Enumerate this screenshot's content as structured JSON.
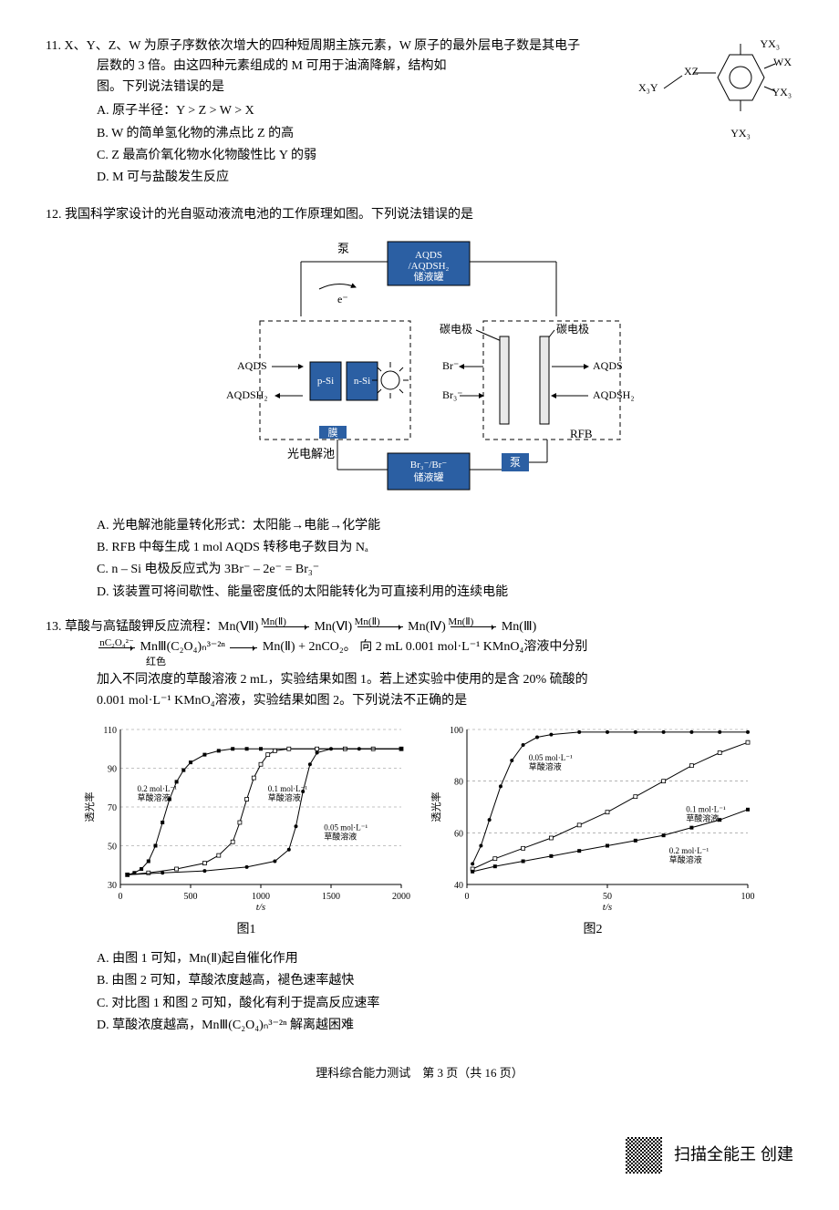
{
  "q11": {
    "num": "11.",
    "stem_l1": "X、Y、Z、W 为原子序数依次增大的四种短周期主族元素，W 原子的最外层电子数是其电子",
    "stem_l2": "层数的 3 倍。由这四种元素组成的 M 可用于油滴降解，结构如",
    "stem_l3": "图。下列说法错误的是",
    "options": {
      "A": "A. 原子半径：Y > Z > W > X",
      "B": "B. W 的简单氢化物的沸点比 Z 的高",
      "C": "C. Z 最高价氧化物水化物酸性比 Y 的弱",
      "D": "D. M 可与盐酸发生反应"
    },
    "fig": {
      "labels": {
        "tl": "YX₃",
        "tr_u": "WX",
        "tr_l": "YX₃",
        "br": "YX₃",
        "left": "X₃Y",
        "mid": "XZ"
      }
    }
  },
  "q12": {
    "num": "12.",
    "stem": "我国科学家设计的光自驱动液流电池的工作原理如图。下列说法错误的是",
    "fig": {
      "top_pump": "泵",
      "aqds_tank": "AQDS/AQDSH₂储液罐",
      "carbon_l": "碳电极",
      "carbon_r": "碳电极",
      "aqds": "AQDS",
      "aqdsh2_l": "AQDSH₂",
      "aqdsh2_r": "AQDSH₂",
      "aqds_r": "AQDS",
      "psi": "p-Si",
      "nsi": "n-Si",
      "br": "Br⁻",
      "br3": "Br₃⁻",
      "membrane": "膜",
      "photocell": "光电解池",
      "brtank": "Br₃⁻/Br⁻储液罐",
      "bottom_pump": "泵",
      "rfb": "RFB",
      "e": "e⁻"
    },
    "options": {
      "A": "A. 光电解池能量转化形式：太阳能→电能→化学能",
      "B": "B. RFB 中每生成 1 mol AQDS 转移电子数目为 Nₐ",
      "C": "C. n – Si 电极反应式为 3Br⁻ – 2e⁻ = Br₃⁻",
      "D": "D. 该装置可将间歇性、能量密度低的太阳能转化为可直接利用的连续电能"
    }
  },
  "q13": {
    "num": "13.",
    "stem_prefix": "草酸与高锰酸钾反应流程：Mn(Ⅶ)",
    "arrow_top": "Mn(Ⅱ)",
    "mn6": "Mn(Ⅵ)",
    "mn4": "Mn(Ⅳ)",
    "mn3": "Mn(Ⅲ)",
    "line2_prefix_top": "nC₂O₄²⁻",
    "line2_complex": "MnⅢ(C₂O₄)ₙ³⁻²ⁿ",
    "line2_redcolor": "红色",
    "line2_prod": "Mn(Ⅱ) + 2nCO₂。",
    "line2_rest": "向 2 mL 0.001 mol·L⁻¹ KMnO₄溶液中分别",
    "line3": "加入不同浓度的草酸溶液 2 mL，实验结果如图 1。若上述实验中使用的是含 20% 硫酸的",
    "line4": "0.001 mol·L⁻¹ KMnO₄溶液，实验结果如图 2。下列说法不正确的是",
    "chart1": {
      "caption": "图1",
      "xlabel": "t/s",
      "ylabel": "透光率",
      "xlim": [
        0,
        2000
      ],
      "ylim": [
        30,
        110
      ],
      "xticks": [
        0,
        500,
        1000,
        1500,
        2000
      ],
      "yticks": [
        30,
        50,
        70,
        90,
        110
      ],
      "grid_color": "#888888",
      "bg": "#ffffff",
      "series": [
        {
          "label": "0.2 mol·L⁻¹\n草酸溶液",
          "label_xy": [
            120,
            78
          ],
          "marker": "square",
          "color": "#000000",
          "points": [
            [
              50,
              35
            ],
            [
              100,
              36
            ],
            [
              150,
              38
            ],
            [
              200,
              42
            ],
            [
              250,
              50
            ],
            [
              300,
              62
            ],
            [
              350,
              74
            ],
            [
              400,
              83
            ],
            [
              450,
              89
            ],
            [
              500,
              93
            ],
            [
              600,
              97
            ],
            [
              700,
              99
            ],
            [
              800,
              100
            ],
            [
              900,
              100
            ],
            [
              1000,
              100
            ],
            [
              1200,
              100
            ],
            [
              1400,
              100
            ],
            [
              1600,
              100
            ],
            [
              1800,
              100
            ],
            [
              2000,
              100
            ]
          ]
        },
        {
          "label": "0.1 mol·L⁻¹\n草酸溶液",
          "label_xy": [
            1050,
            78
          ],
          "marker": "square-open",
          "color": "#000000",
          "points": [
            [
              50,
              35
            ],
            [
              200,
              36
            ],
            [
              400,
              38
            ],
            [
              600,
              41
            ],
            [
              700,
              45
            ],
            [
              800,
              52
            ],
            [
              850,
              62
            ],
            [
              900,
              74
            ],
            [
              950,
              85
            ],
            [
              1000,
              92
            ],
            [
              1050,
              97
            ],
            [
              1100,
              99
            ],
            [
              1200,
              100
            ],
            [
              1400,
              100
            ],
            [
              1600,
              100
            ],
            [
              1800,
              100
            ],
            [
              2000,
              100
            ]
          ]
        },
        {
          "label": "0.05 mol·L⁻¹\n草酸溶液",
          "label_xy": [
            1450,
            58
          ],
          "marker": "circle",
          "color": "#000000",
          "points": [
            [
              50,
              35
            ],
            [
              300,
              36
            ],
            [
              600,
              37
            ],
            [
              900,
              39
            ],
            [
              1100,
              42
            ],
            [
              1200,
              48
            ],
            [
              1250,
              60
            ],
            [
              1300,
              78
            ],
            [
              1350,
              92
            ],
            [
              1400,
              98
            ],
            [
              1500,
              100
            ],
            [
              1700,
              100
            ],
            [
              2000,
              100
            ]
          ]
        }
      ]
    },
    "chart2": {
      "caption": "图2",
      "xlabel": "t/s",
      "ylabel": "透光率",
      "xlim": [
        0,
        100
      ],
      "ylim": [
        40,
        100
      ],
      "xticks": [
        0,
        50,
        100
      ],
      "yticks": [
        40,
        60,
        80,
        100
      ],
      "grid_color": "#888888",
      "bg": "#ffffff",
      "series": [
        {
          "label": "0.05 mol·L⁻¹\n草酸溶液",
          "label_xy": [
            22,
            88
          ],
          "marker": "circle",
          "color": "#000000",
          "points": [
            [
              2,
              48
            ],
            [
              5,
              55
            ],
            [
              8,
              65
            ],
            [
              12,
              78
            ],
            [
              16,
              88
            ],
            [
              20,
              94
            ],
            [
              25,
              97
            ],
            [
              30,
              98
            ],
            [
              40,
              99
            ],
            [
              50,
              99
            ],
            [
              60,
              99
            ],
            [
              70,
              99
            ],
            [
              80,
              99
            ],
            [
              90,
              99
            ],
            [
              100,
              99
            ]
          ]
        },
        {
          "label": "0.1 mol·L⁻¹\n草酸溶液",
          "label_xy": [
            78,
            68
          ],
          "marker": "square-open",
          "color": "#000000",
          "points": [
            [
              2,
              46
            ],
            [
              10,
              50
            ],
            [
              20,
              54
            ],
            [
              30,
              58
            ],
            [
              40,
              63
            ],
            [
              50,
              68
            ],
            [
              60,
              74
            ],
            [
              70,
              80
            ],
            [
              80,
              86
            ],
            [
              90,
              91
            ],
            [
              100,
              95
            ]
          ]
        },
        {
          "label": "0.2 mol·L⁻¹\n草酸溶液",
          "label_xy": [
            72,
            52
          ],
          "marker": "square",
          "color": "#000000",
          "points": [
            [
              2,
              45
            ],
            [
              10,
              47
            ],
            [
              20,
              49
            ],
            [
              30,
              51
            ],
            [
              40,
              53
            ],
            [
              50,
              55
            ],
            [
              60,
              57
            ],
            [
              70,
              59
            ],
            [
              80,
              62
            ],
            [
              90,
              65
            ],
            [
              100,
              69
            ]
          ]
        }
      ]
    },
    "options": {
      "A": "A. 由图 1 可知，Mn(Ⅱ)起自催化作用",
      "B": "B. 由图 2 可知，草酸浓度越高，褪色速率越快",
      "C": "C. 对比图 1 和图 2 可知，酸化有利于提高反应速率",
      "D": "D. 草酸浓度越高，MnⅢ(C₂O₄)ₙ³⁻²ⁿ 解离越困难"
    }
  },
  "footer": "理科综合能力测试　第 3 页（共 16 页）",
  "scan_tag": "扫描全能王 创建"
}
